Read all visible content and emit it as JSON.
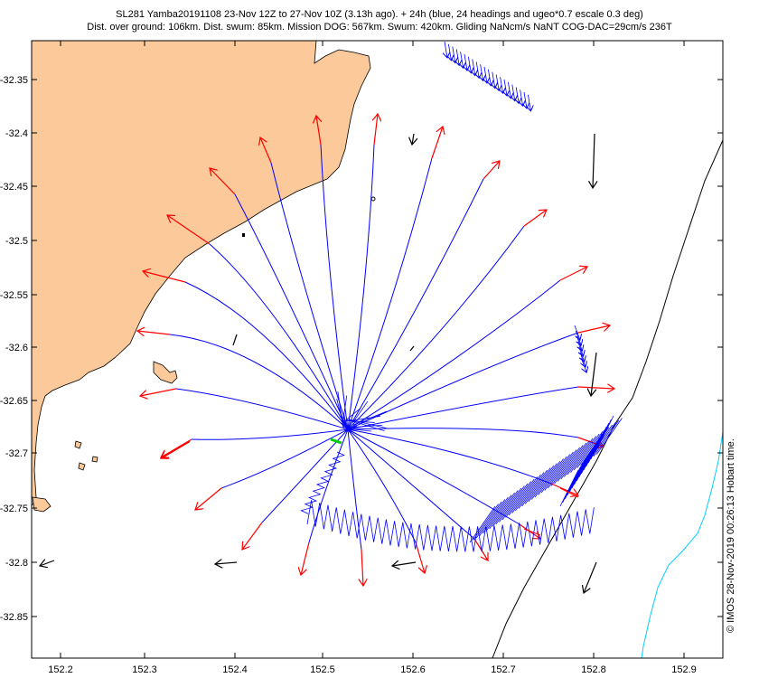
{
  "header": {
    "title_line1": "SL281 Yamba20191108 23-Nov 12Z to 27-Nov 10Z (3.13h ago). + 24h (blue, 24 headings and ugeo*0.7 escale 0.3 deg)",
    "title_line2": "Dist. over ground: 106km. Dist. swum: 85km. Mission DOG: 567km. Swum: 420km. Gliding NaNcm/s NaNT COG-DAC=29cm/s 236T"
  },
  "credit": "© IMOS 28-Nov-2019 00:26:13 Hobart time.",
  "axes": {
    "x_ticks": [
      "152.2",
      "152.3",
      "152.4",
      "152.5",
      "152.6",
      "152.7",
      "152.8",
      "152.9"
    ],
    "y_ticks": [
      "-32.35",
      "-32.4",
      "-32.45",
      "-32.5",
      "-32.55",
      "-32.6",
      "-32.65",
      "-32.7",
      "-32.75",
      "-32.8",
      "-32.85"
    ]
  },
  "colors": {
    "land": "#fbc99a",
    "heading_track": "#0000ff",
    "heading_arrow": "#ff0000",
    "current_vector": "#000000",
    "glider_position": "#00cc00",
    "shelf_contour": "#000000",
    "deep_contour": "#00d0ff"
  },
  "map": {
    "glider_position": {
      "lon": 152.515,
      "lat": -32.689
    }
  }
}
